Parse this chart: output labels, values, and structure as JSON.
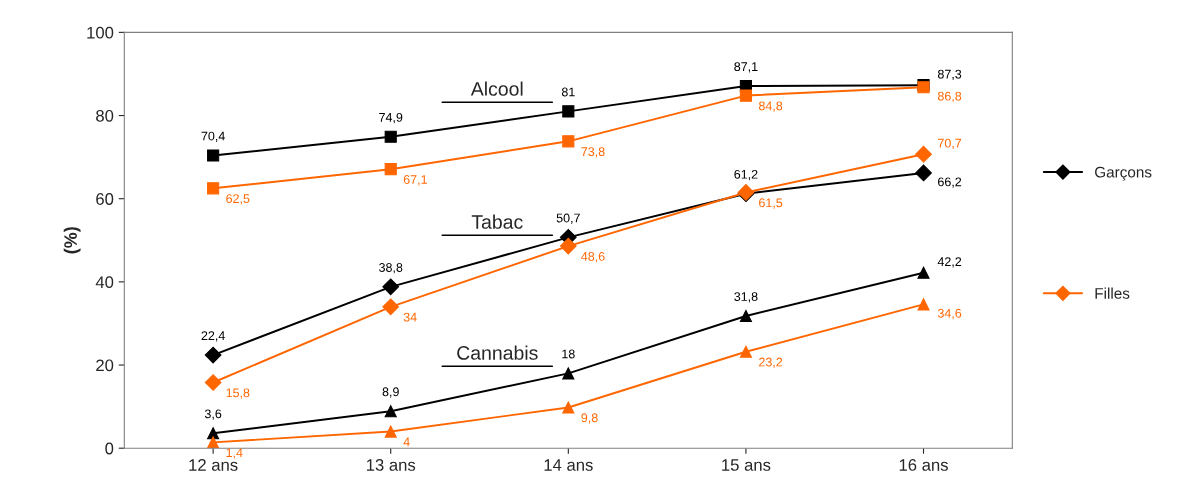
{
  "chart_data": {
    "type": "line",
    "ylabel": "(%)",
    "categories": [
      "12 ans",
      "13 ans",
      "14 ans",
      "15 ans",
      "16 ans"
    ],
    "ylim": [
      0,
      100
    ],
    "yticks": [
      0,
      20,
      40,
      60,
      80,
      100
    ],
    "grid": false,
    "legend": "right",
    "annotations": [
      "Alcool",
      "Tabac",
      "Cannabis"
    ],
    "series": [
      {
        "color": "#000000",
        "marker": "square",
        "values": [
          70.4,
          74.9,
          81,
          87.1,
          87.3
        ],
        "value_labels": [
          "70,4",
          "74,9",
          "81",
          "87,1",
          "87,3"
        ]
      },
      {
        "color": "#ff6600",
        "marker": "square",
        "values": [
          62.5,
          67.1,
          73.8,
          84.8,
          86.8
        ],
        "value_labels": [
          "62,5",
          "67,1",
          "73,8",
          "84,8",
          "86,8"
        ]
      },
      {
        "name": "Garçons",
        "color": "#000000",
        "marker": "diamond",
        "values": [
          22.4,
          38.8,
          50.7,
          61.2,
          66.2
        ],
        "value_labels": [
          "22,4",
          "38,8",
          "50,7",
          "61,2",
          "66,2"
        ]
      },
      {
        "name": "Filles",
        "color": "#ff6600",
        "marker": "diamond",
        "values": [
          15.8,
          34,
          48.6,
          61.5,
          70.7
        ],
        "value_labels": [
          "15,8",
          "34",
          "48,6",
          "61,5",
          "70,7"
        ]
      },
      {
        "color": "#000000",
        "marker": "triangle",
        "values": [
          3.6,
          8.9,
          18,
          31.8,
          42.2
        ],
        "value_labels": [
          "3,6",
          "8,9",
          "18",
          "31,8",
          "42,2"
        ]
      },
      {
        "color": "#ff6600",
        "marker": "triangle",
        "values": [
          1.4,
          4,
          9.8,
          23.2,
          34.6
        ],
        "value_labels": [
          "1,4",
          "4",
          "9,8",
          "23,2",
          "34,6"
        ]
      }
    ]
  }
}
